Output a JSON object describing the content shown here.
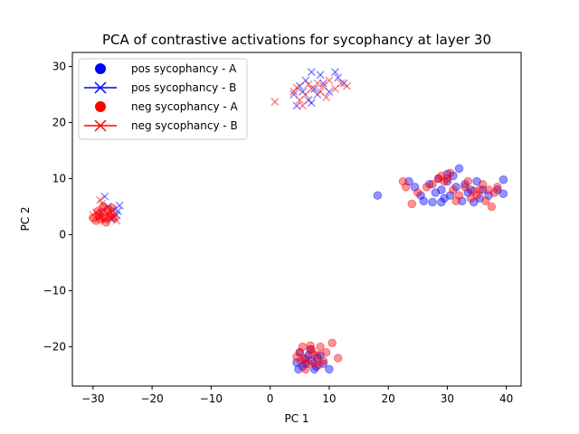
{
  "chart_data": {
    "type": "scatter",
    "title": "PCA of contrastive activations for sycophancy at layer 30",
    "xlabel": "PC 1",
    "ylabel": "PC 2",
    "xlim": [
      -33.5,
      42.5
    ],
    "ylim": [
      -27,
      32.5
    ],
    "xticks": [
      -30,
      -20,
      -10,
      0,
      10,
      20,
      30,
      40
    ],
    "yticks": [
      -20,
      -10,
      0,
      10,
      20,
      30
    ],
    "grid": false,
    "legend_position": "top-left",
    "series": [
      {
        "name": "pos sycophancy - A",
        "marker": "circle",
        "color": "#0000ff"
      },
      {
        "name": "pos sycophancy - B",
        "marker": "x",
        "color": "#0000ff"
      },
      {
        "name": "neg sycophancy - A",
        "marker": "circle",
        "color": "#ff0000"
      },
      {
        "name": "neg sycophancy - B",
        "marker": "x",
        "color": "#ff0000"
      }
    ],
    "points": [
      {
        "series": 0,
        "x": 7.0,
        "y": -22.5
      },
      {
        "series": 0,
        "x": 5.5,
        "y": -23.5
      },
      {
        "series": 0,
        "x": 6.5,
        "y": -21.5
      },
      {
        "series": 0,
        "x": 8.0,
        "y": -22.0
      },
      {
        "series": 0,
        "x": 4.5,
        "y": -22.8
      },
      {
        "series": 0,
        "x": 9.0,
        "y": -23.0
      },
      {
        "series": 0,
        "x": 5.0,
        "y": -21.0
      },
      {
        "series": 0,
        "x": 7.5,
        "y": -24.0
      },
      {
        "series": 0,
        "x": 6.0,
        "y": -23.0
      },
      {
        "series": 0,
        "x": 8.5,
        "y": -21.5
      },
      {
        "series": 0,
        "x": 10.0,
        "y": -24.0
      },
      {
        "series": 0,
        "x": 4.8,
        "y": -24.0
      },
      {
        "series": 0,
        "x": 6.8,
        "y": -20.5
      },
      {
        "series": 0,
        "x": 7.8,
        "y": -23.5
      },
      {
        "series": 0,
        "x": 5.8,
        "y": -22.2
      },
      {
        "series": 0,
        "x": 18.2,
        "y": 7.0
      },
      {
        "series": 0,
        "x": 23.5,
        "y": 9.5
      },
      {
        "series": 0,
        "x": 24.5,
        "y": 8.5
      },
      {
        "series": 0,
        "x": 25.5,
        "y": 7.0
      },
      {
        "series": 0,
        "x": 26.0,
        "y": 6.0
      },
      {
        "series": 0,
        "x": 27.0,
        "y": 9.0
      },
      {
        "series": 0,
        "x": 28.0,
        "y": 7.5
      },
      {
        "series": 0,
        "x": 28.5,
        "y": 10.0
      },
      {
        "series": 0,
        "x": 29.0,
        "y": 8.0
      },
      {
        "series": 0,
        "x": 29.5,
        "y": 6.5
      },
      {
        "series": 0,
        "x": 30.0,
        "y": 9.5
      },
      {
        "series": 0,
        "x": 30.5,
        "y": 7.0
      },
      {
        "series": 0,
        "x": 31.0,
        "y": 10.5
      },
      {
        "series": 0,
        "x": 31.5,
        "y": 8.5
      },
      {
        "series": 0,
        "x": 32.0,
        "y": 11.8
      },
      {
        "series": 0,
        "x": 32.5,
        "y": 6.0
      },
      {
        "series": 0,
        "x": 33.0,
        "y": 9.0
      },
      {
        "series": 0,
        "x": 33.5,
        "y": 7.5
      },
      {
        "series": 0,
        "x": 34.0,
        "y": 8.0
      },
      {
        "series": 0,
        "x": 35.0,
        "y": 9.5
      },
      {
        "series": 0,
        "x": 35.5,
        "y": 6.5
      },
      {
        "series": 0,
        "x": 36.0,
        "y": 8.0
      },
      {
        "series": 0,
        "x": 37.0,
        "y": 7.0
      },
      {
        "series": 0,
        "x": 38.5,
        "y": 8.0
      },
      {
        "series": 0,
        "x": 39.5,
        "y": 9.8
      },
      {
        "series": 0,
        "x": 39.5,
        "y": 7.3
      },
      {
        "series": 0,
        "x": 27.5,
        "y": 5.8
      },
      {
        "series": 0,
        "x": 30.0,
        "y": 10.8
      },
      {
        "series": 0,
        "x": 34.5,
        "y": 5.8
      },
      {
        "series": 0,
        "x": 29.0,
        "y": 5.8
      },
      {
        "series": 1,
        "x": -28.0,
        "y": 6.8
      },
      {
        "series": 1,
        "x": -26.5,
        "y": 4.5
      },
      {
        "series": 1,
        "x": -25.5,
        "y": 5.2
      },
      {
        "series": 1,
        "x": -27.0,
        "y": 3.0
      },
      {
        "series": 1,
        "x": -28.5,
        "y": 4.0
      },
      {
        "series": 1,
        "x": -26.0,
        "y": 3.5
      },
      {
        "series": 1,
        "x": -27.5,
        "y": 5.0
      },
      {
        "series": 1,
        "x": -25.8,
        "y": 4.2
      },
      {
        "series": 1,
        "x": -28.8,
        "y": 3.2
      },
      {
        "series": 1,
        "x": -26.8,
        "y": 2.8
      },
      {
        "series": 1,
        "x": 7.0,
        "y": 29.0
      },
      {
        "series": 1,
        "x": 11.0,
        "y": 29.0
      },
      {
        "series": 1,
        "x": 8.5,
        "y": 28.5
      },
      {
        "series": 1,
        "x": 5.0,
        "y": 26.5
      },
      {
        "series": 1,
        "x": 6.0,
        "y": 27.5
      },
      {
        "series": 1,
        "x": 7.5,
        "y": 26.0
      },
      {
        "series": 1,
        "x": 9.0,
        "y": 27.0
      },
      {
        "series": 1,
        "x": 10.0,
        "y": 25.5
      },
      {
        "series": 1,
        "x": 4.0,
        "y": 25.0
      },
      {
        "series": 1,
        "x": 4.5,
        "y": 23.0
      },
      {
        "series": 1,
        "x": 6.5,
        "y": 24.0
      },
      {
        "series": 1,
        "x": 8.0,
        "y": 25.0
      },
      {
        "series": 1,
        "x": 11.5,
        "y": 28.0
      },
      {
        "series": 1,
        "x": 12.5,
        "y": 27.0
      },
      {
        "series": 1,
        "x": 5.5,
        "y": 25.5
      },
      {
        "series": 1,
        "x": 7.0,
        "y": 23.5
      },
      {
        "series": 2,
        "x": 5.0,
        "y": -21.0
      },
      {
        "series": 2,
        "x": 6.0,
        "y": -22.0
      },
      {
        "series": 2,
        "x": 7.0,
        "y": -20.5
      },
      {
        "series": 2,
        "x": 8.0,
        "y": -21.5
      },
      {
        "series": 2,
        "x": 9.0,
        "y": -22.5
      },
      {
        "series": 2,
        "x": 10.5,
        "y": -19.3
      },
      {
        "series": 2,
        "x": 11.5,
        "y": -22.0
      },
      {
        "series": 2,
        "x": 6.5,
        "y": -23.0
      },
      {
        "series": 2,
        "x": 7.5,
        "y": -22.8
      },
      {
        "series": 2,
        "x": 5.5,
        "y": -20.0
      },
      {
        "series": 2,
        "x": 4.5,
        "y": -21.8
      },
      {
        "series": 2,
        "x": 8.5,
        "y": -20.0
      },
      {
        "series": 2,
        "x": 9.5,
        "y": -21.0
      },
      {
        "series": 2,
        "x": 6.0,
        "y": -24.0
      },
      {
        "series": 2,
        "x": 7.2,
        "y": -21.2
      },
      {
        "series": 2,
        "x": 8.2,
        "y": -23.2
      },
      {
        "series": 2,
        "x": 5.2,
        "y": -22.5
      },
      {
        "series": 2,
        "x": 6.8,
        "y": -19.8
      },
      {
        "series": 2,
        "x": -30.0,
        "y": 3.0
      },
      {
        "series": 2,
        "x": -29.5,
        "y": 2.5
      },
      {
        "series": 2,
        "x": -29.0,
        "y": 3.5
      },
      {
        "series": 2,
        "x": -28.5,
        "y": 4.0
      },
      {
        "series": 2,
        "x": -28.0,
        "y": 3.0
      },
      {
        "series": 2,
        "x": -27.5,
        "y": 4.5
      },
      {
        "series": 2,
        "x": -27.0,
        "y": 3.8
      },
      {
        "series": 2,
        "x": -26.5,
        "y": 3.0
      },
      {
        "series": 2,
        "x": -28.2,
        "y": 5.0
      },
      {
        "series": 2,
        "x": -29.2,
        "y": 4.2
      },
      {
        "series": 2,
        "x": -27.8,
        "y": 2.2
      },
      {
        "series": 2,
        "x": -26.8,
        "y": 4.8
      },
      {
        "series": 2,
        "x": -28.8,
        "y": 2.8
      },
      {
        "series": 2,
        "x": -27.2,
        "y": 3.3
      },
      {
        "series": 2,
        "x": 22.5,
        "y": 9.5
      },
      {
        "series": 2,
        "x": 23.0,
        "y": 8.5
      },
      {
        "series": 2,
        "x": 24.0,
        "y": 5.5
      },
      {
        "series": 2,
        "x": 25.0,
        "y": 7.5
      },
      {
        "series": 2,
        "x": 26.5,
        "y": 8.5
      },
      {
        "series": 2,
        "x": 27.5,
        "y": 9.0
      },
      {
        "series": 2,
        "x": 28.5,
        "y": 10.0
      },
      {
        "series": 2,
        "x": 29.5,
        "y": 9.5
      },
      {
        "series": 2,
        "x": 30.5,
        "y": 11.0
      },
      {
        "series": 2,
        "x": 31.0,
        "y": 8.0
      },
      {
        "series": 2,
        "x": 32.0,
        "y": 7.0
      },
      {
        "series": 2,
        "x": 33.0,
        "y": 8.5
      },
      {
        "series": 2,
        "x": 34.0,
        "y": 6.5
      },
      {
        "series": 2,
        "x": 35.0,
        "y": 7.0
      },
      {
        "series": 2,
        "x": 36.0,
        "y": 9.0
      },
      {
        "series": 2,
        "x": 36.5,
        "y": 6.0
      },
      {
        "series": 2,
        "x": 37.0,
        "y": 8.0
      },
      {
        "series": 2,
        "x": 37.5,
        "y": 5.0
      },
      {
        "series": 2,
        "x": 38.0,
        "y": 7.5
      },
      {
        "series": 2,
        "x": 38.5,
        "y": 8.5
      },
      {
        "series": 2,
        "x": 29.0,
        "y": 10.5
      },
      {
        "series": 2,
        "x": 30.0,
        "y": 10.0
      },
      {
        "series": 2,
        "x": 33.5,
        "y": 9.5
      },
      {
        "series": 2,
        "x": 35.5,
        "y": 8.0
      },
      {
        "series": 2,
        "x": 31.5,
        "y": 6.0
      },
      {
        "series": 2,
        "x": 34.5,
        "y": 7.8
      },
      {
        "series": 3,
        "x": -30.0,
        "y": 3.5
      },
      {
        "series": 3,
        "x": -29.0,
        "y": 3.0
      },
      {
        "series": 3,
        "x": -28.0,
        "y": 2.5
      },
      {
        "series": 3,
        "x": -27.0,
        "y": 4.0
      },
      {
        "series": 3,
        "x": -28.5,
        "y": 5.5
      },
      {
        "series": 3,
        "x": -28.8,
        "y": 6.2
      },
      {
        "series": 3,
        "x": -29.5,
        "y": 4.0
      },
      {
        "series": 3,
        "x": -27.5,
        "y": 3.5
      },
      {
        "series": 3,
        "x": -26.5,
        "y": 3.2
      },
      {
        "series": 3,
        "x": -28.2,
        "y": 4.5
      },
      {
        "series": 3,
        "x": -26.0,
        "y": 2.5
      },
      {
        "series": 3,
        "x": -27.8,
        "y": 2.8
      },
      {
        "series": 3,
        "x": 0.8,
        "y": 23.7
      },
      {
        "series": 3,
        "x": 4.0,
        "y": 25.5
      },
      {
        "series": 3,
        "x": 5.0,
        "y": 24.0
      },
      {
        "series": 3,
        "x": 6.0,
        "y": 25.0
      },
      {
        "series": 3,
        "x": 7.0,
        "y": 26.0
      },
      {
        "series": 3,
        "x": 8.0,
        "y": 27.0
      },
      {
        "series": 3,
        "x": 9.0,
        "y": 26.5
      },
      {
        "series": 3,
        "x": 10.0,
        "y": 27.5
      },
      {
        "series": 3,
        "x": 11.0,
        "y": 26.0
      },
      {
        "series": 3,
        "x": 12.0,
        "y": 27.0
      },
      {
        "series": 3,
        "x": 13.0,
        "y": 26.5
      },
      {
        "series": 3,
        "x": 5.5,
        "y": 23.0
      },
      {
        "series": 3,
        "x": 6.5,
        "y": 26.8
      },
      {
        "series": 3,
        "x": 8.5,
        "y": 25.5
      },
      {
        "series": 3,
        "x": 4.5,
        "y": 26.2
      },
      {
        "series": 3,
        "x": 9.5,
        "y": 24.5
      }
    ]
  }
}
